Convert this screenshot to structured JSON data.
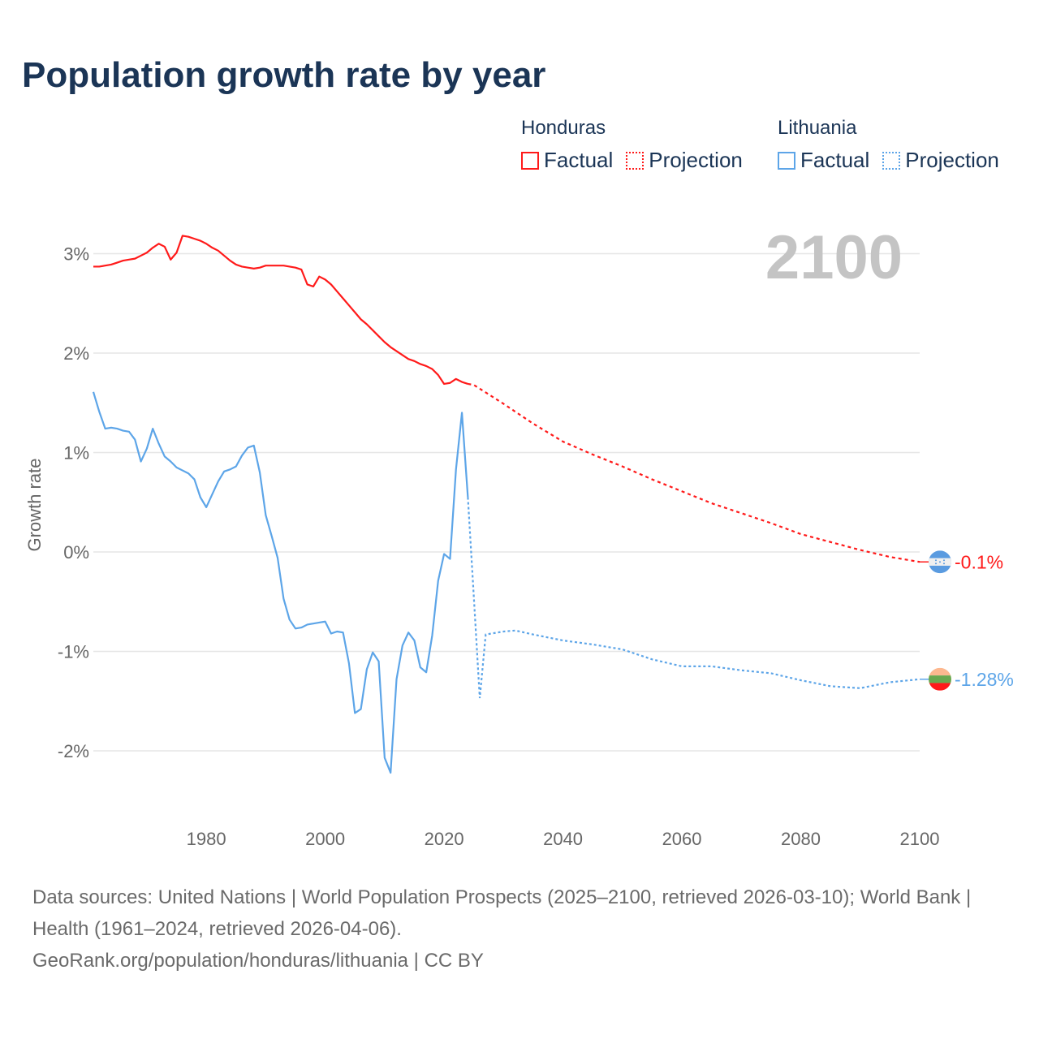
{
  "title": "Population growth rate by year",
  "legend": {
    "groups": [
      {
        "name": "Honduras",
        "color": "#ff1a1a",
        "factual_label": "Factual",
        "projection_label": "Projection"
      },
      {
        "name": "Lithuania",
        "color": "#5da5e8",
        "factual_label": "Factual",
        "projection_label": "Projection"
      }
    ]
  },
  "year_display": "2100",
  "footer": {
    "sources": "Data sources: United Nations | World Population Prospects (2025–2100, retrieved 2026-03-10); World Bank | Health (1961–2024, retrieved 2026-04-06).",
    "credit": "GeoRank.org/population/honduras/lithuania | CC BY"
  },
  "chart_data": {
    "type": "line",
    "title": "Population growth rate by year",
    "xlabel": "",
    "ylabel": "Growth rate",
    "xlim": [
      1961,
      2100
    ],
    "ylim": [
      -2.6,
      3.6
    ],
    "x_ticks": [
      1980,
      2000,
      2020,
      2040,
      2060,
      2080,
      2100
    ],
    "y_ticks": [
      {
        "v": 3,
        "label": "3%"
      },
      {
        "v": 2,
        "label": "2%"
      },
      {
        "v": 1,
        "label": "1%"
      },
      {
        "v": 0,
        "label": "0%"
      },
      {
        "v": -1,
        "label": "-1%"
      },
      {
        "v": -2,
        "label": "-2%"
      }
    ],
    "grid": true,
    "series": [
      {
        "name": "Honduras",
        "color": "#ff1a1a",
        "end_label": "-0.1%",
        "factual": {
          "x": [
            1961,
            1962,
            1963,
            1964,
            1965,
            1966,
            1967,
            1968,
            1969,
            1970,
            1971,
            1972,
            1973,
            1974,
            1975,
            1976,
            1977,
            1978,
            1979,
            1980,
            1981,
            1982,
            1983,
            1984,
            1985,
            1986,
            1987,
            1988,
            1989,
            1990,
            1991,
            1992,
            1993,
            1994,
            1995,
            1996,
            1997,
            1998,
            1999,
            2000,
            2001,
            2002,
            2003,
            2004,
            2005,
            2006,
            2007,
            2008,
            2009,
            2010,
            2011,
            2012,
            2013,
            2014,
            2015,
            2016,
            2017,
            2018,
            2019,
            2020,
            2021,
            2022,
            2023,
            2024
          ],
          "y": [
            2.87,
            2.87,
            2.88,
            2.89,
            2.91,
            2.93,
            2.94,
            2.95,
            2.98,
            3.01,
            3.06,
            3.1,
            3.07,
            2.94,
            3.01,
            3.18,
            3.17,
            3.15,
            3.13,
            3.1,
            3.06,
            3.03,
            2.98,
            2.93,
            2.89,
            2.87,
            2.86,
            2.85,
            2.86,
            2.88,
            2.88,
            2.88,
            2.88,
            2.87,
            2.86,
            2.84,
            2.69,
            2.67,
            2.77,
            2.74,
            2.69,
            2.62,
            2.55,
            2.48,
            2.41,
            2.34,
            2.29,
            2.23,
            2.17,
            2.11,
            2.06,
            2.02,
            1.98,
            1.94,
            1.92,
            1.89,
            1.87,
            1.84,
            1.78,
            1.69,
            1.7,
            1.74,
            1.71,
            1.69
          ]
        },
        "projection": {
          "x": [
            2025,
            2030,
            2035,
            2040,
            2045,
            2050,
            2055,
            2060,
            2065,
            2070,
            2075,
            2080,
            2085,
            2090,
            2095,
            2100
          ],
          "y": [
            1.68,
            1.49,
            1.29,
            1.11,
            0.98,
            0.86,
            0.73,
            0.61,
            0.49,
            0.39,
            0.29,
            0.18,
            0.1,
            0.02,
            -0.05,
            -0.1
          ]
        }
      },
      {
        "name": "Lithuania",
        "color": "#5da5e8",
        "end_label": "-1.28%",
        "factual": {
          "x": [
            1961,
            1962,
            1963,
            1964,
            1965,
            1966,
            1967,
            1968,
            1969,
            1970,
            1971,
            1972,
            1973,
            1974,
            1975,
            1976,
            1977,
            1978,
            1979,
            1980,
            1981,
            1982,
            1983,
            1984,
            1985,
            1986,
            1987,
            1988,
            1989,
            1990,
            1991,
            1992,
            1993,
            1994,
            1995,
            1996,
            1997,
            1998,
            1999,
            2000,
            2001,
            2002,
            2003,
            2004,
            2005,
            2006,
            2007,
            2008,
            2009,
            2010,
            2011,
            2012,
            2013,
            2014,
            2015,
            2016,
            2017,
            2018,
            2019,
            2020,
            2021,
            2022,
            2023,
            2024
          ],
          "y": [
            1.61,
            1.41,
            1.24,
            1.25,
            1.24,
            1.22,
            1.21,
            1.13,
            0.91,
            1.04,
            1.24,
            1.09,
            0.96,
            0.91,
            0.85,
            0.82,
            0.79,
            0.73,
            0.55,
            0.45,
            0.58,
            0.71,
            0.81,
            0.83,
            0.86,
            0.97,
            1.05,
            1.07,
            0.8,
            0.37,
            0.16,
            -0.06,
            -0.47,
            -0.68,
            -0.77,
            -0.76,
            -0.73,
            -0.72,
            -0.71,
            -0.7,
            -0.82,
            -0.8,
            -0.81,
            -1.12,
            -1.62,
            -1.58,
            -1.18,
            -1.01,
            -1.1,
            -2.07,
            -2.22,
            -1.28,
            -0.94,
            -0.81,
            -0.89,
            -1.16,
            -1.21,
            -0.84,
            -0.29,
            -0.02,
            -0.07,
            0.83,
            1.4,
            0.55
          ]
        },
        "projection": {
          "x": [
            2025,
            2026,
            2027,
            2028,
            2030,
            2032,
            2035,
            2040,
            2045,
            2050,
            2055,
            2060,
            2065,
            2070,
            2075,
            2080,
            2085,
            2090,
            2095,
            2100
          ],
          "y": [
            -0.45,
            -1.47,
            -0.83,
            -0.82,
            -0.8,
            -0.79,
            -0.83,
            -0.89,
            -0.93,
            -0.98,
            -1.08,
            -1.15,
            -1.15,
            -1.19,
            -1.22,
            -1.29,
            -1.35,
            -1.37,
            -1.31,
            -1.28
          ]
        }
      }
    ]
  }
}
